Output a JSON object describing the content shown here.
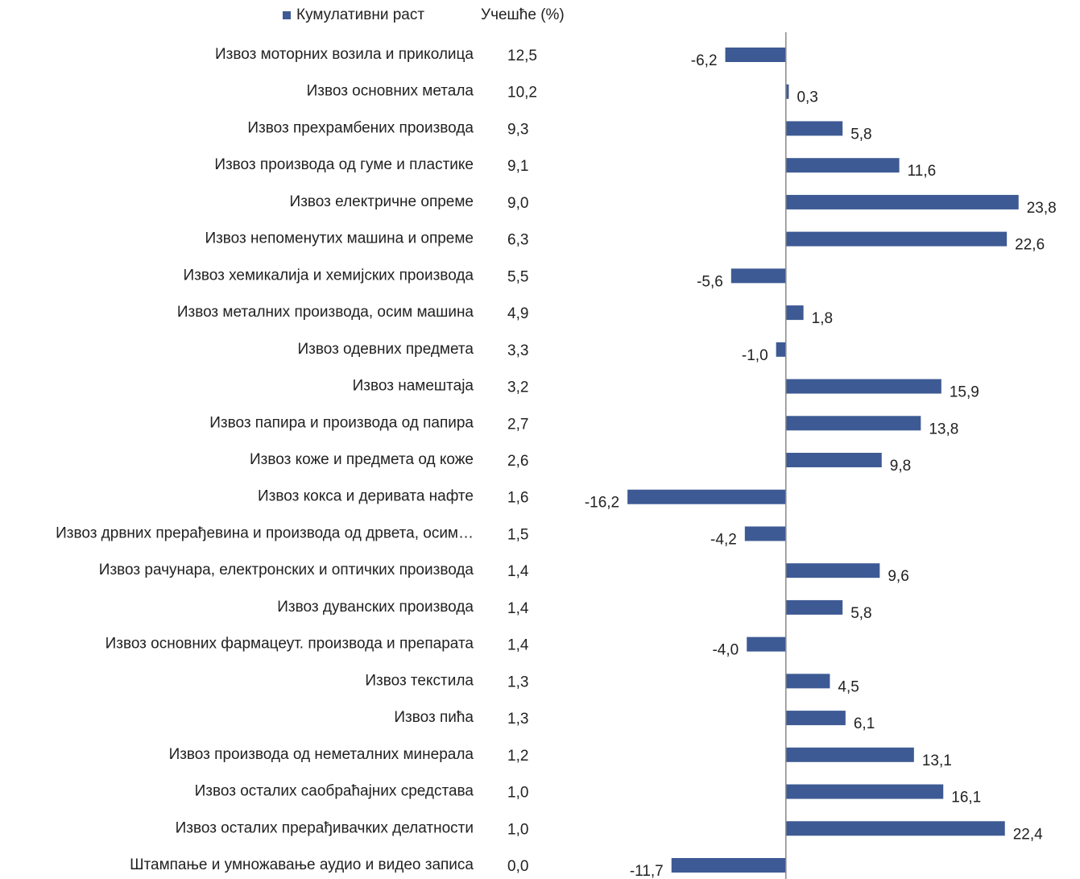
{
  "chart_data": {
    "type": "bar",
    "orientation": "horizontal",
    "share_header": "Учешће (%)",
    "categories": [
      "Извоз моторних возила и приколица",
      "Извоз основних метала",
      "Извоз прехрамбених производа",
      "Извоз производа од гуме и пластике",
      "Извоз електричне опреме",
      "Извоз непоменутих машина и опреме",
      "Извоз хемикалија и хемијских производа",
      "Извоз металних производа, осим машина",
      "Извоз одевних предмета",
      "Извоз намештаја",
      "Извоз папира и производа од папира",
      "Извоз коже и предмета од коже",
      "Извоз кокса и деривата нафте",
      "Извоз дрвних прерађевина и производа од дрвета, осим…",
      "Извоз рачунара, електронских и оптичких производа",
      "Извоз дуванских производа",
      "Извоз основних фармацеут. производа и препарата",
      "Извоз текстила",
      "Извоз пића",
      "Извоз производа од неметалних минерала",
      "Извоз осталих саобраћајних средстава",
      "Извоз осталих прерађивачких делатности",
      "Штампање и умножавање аудио и видео записа"
    ],
    "shares": [
      "12,5",
      "10,2",
      "9,3",
      "9,1",
      "9,0",
      "6,3",
      "5,5",
      "4,9",
      "3,3",
      "3,2",
      "2,7",
      "2,6",
      "1,6",
      "1,5",
      "1,4",
      "1,4",
      "1,4",
      "1,3",
      "1,3",
      "1,2",
      "1,0",
      "1,0",
      "0,0"
    ],
    "series": [
      {
        "name": "Кумулативни раст",
        "color": "#3d5a94",
        "values": [
          -6.2,
          0.3,
          5.8,
          11.6,
          23.8,
          22.6,
          -5.6,
          1.8,
          -1.0,
          15.9,
          13.8,
          9.8,
          -16.2,
          -4.2,
          9.6,
          5.8,
          -4.0,
          4.5,
          6.1,
          13.1,
          16.1,
          22.4,
          -11.7
        ],
        "value_labels": [
          "-6,2",
          "0,3",
          "5,8",
          "11,6",
          "23,8",
          "22,6",
          "-5,6",
          "1,8",
          "-1,0",
          "15,9",
          "13,8",
          "9,8",
          "-16,2",
          "-4,2",
          "9,6",
          "5,8",
          "-4,0",
          "4,5",
          "6,1",
          "13,1",
          "16,1",
          "22,4",
          "-11,7"
        ]
      }
    ],
    "xlim": [
      -20,
      30
    ]
  }
}
